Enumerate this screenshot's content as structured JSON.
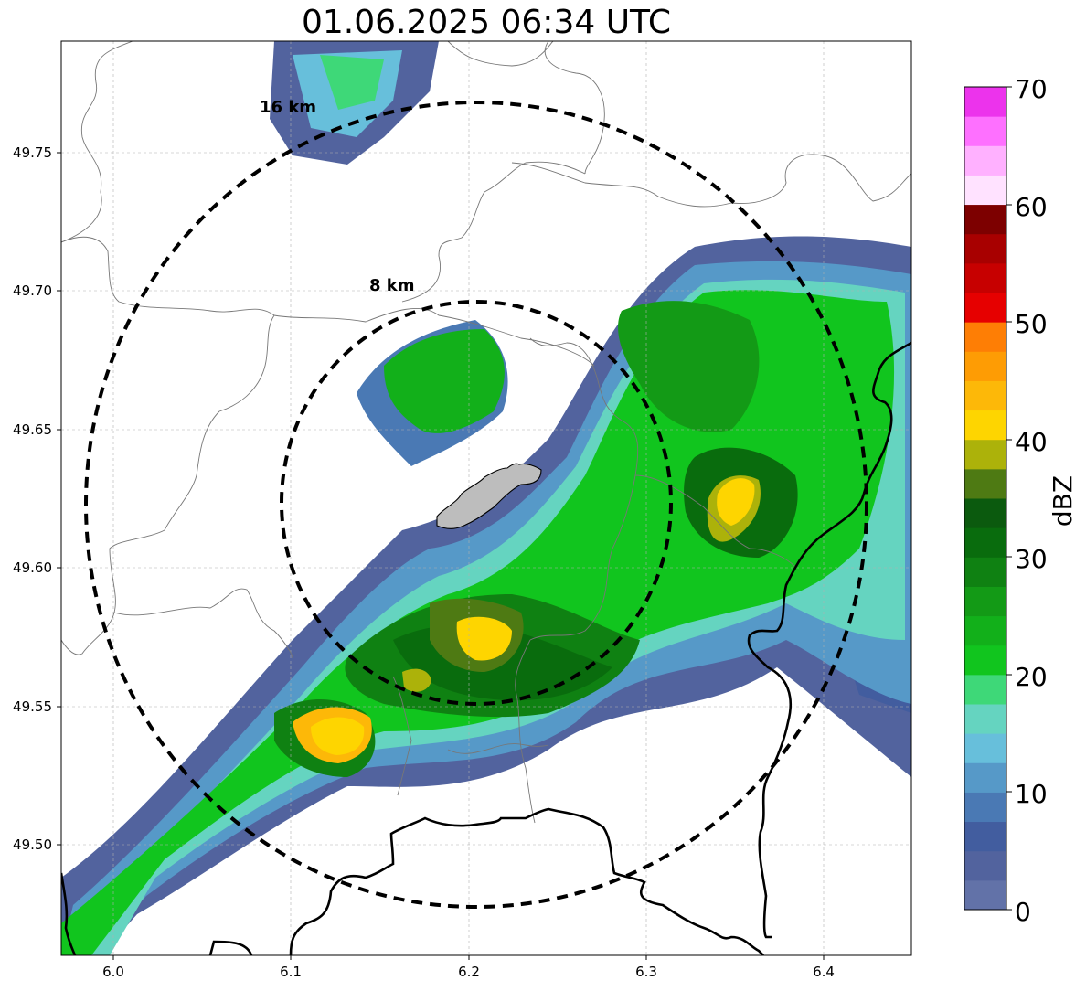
{
  "title": "01.06.2025 06:34 UTC",
  "map": {
    "lon_range": [
      5.97,
      6.45
    ],
    "lat_range": [
      49.46,
      49.79
    ],
    "lon_ticks": [
      "6.0",
      "6.1",
      "6.2",
      "6.3",
      "6.4"
    ],
    "lat_ticks": [
      "49.50",
      "49.55",
      "49.60",
      "49.65",
      "49.70",
      "49.75"
    ],
    "grid": true,
    "radar_center": {
      "lon": 6.205,
      "lat": 49.623
    },
    "rings": [
      {
        "label": "8 km",
        "radius_km": 8
      },
      {
        "label": "16 km",
        "radius_km": 16
      }
    ]
  },
  "colorbar": {
    "label": "dBZ",
    "ticks": [
      "0",
      "10",
      "20",
      "30",
      "40",
      "50",
      "60",
      "70"
    ],
    "range": [
      0,
      70
    ],
    "colors": [
      "#6272a8",
      "#52639e",
      "#425d9f",
      "#4a79b4",
      "#5699c8",
      "#67bfdb",
      "#65d4c0",
      "#3ed878",
      "#11c51e",
      "#12b01a",
      "#139a16",
      "#0f8112",
      "#096c0d",
      "#0b5a0e",
      "#4e7a13",
      "#acb20a",
      "#fed500",
      "#fdb808",
      "#fe9c04",
      "#fe7e05",
      "#e60000",
      "#c70000",
      "#a80000",
      "#7d0000",
      "#ffe2ff",
      "#ffb1ff",
      "#fe70ff",
      "#ec33ec"
    ]
  }
}
